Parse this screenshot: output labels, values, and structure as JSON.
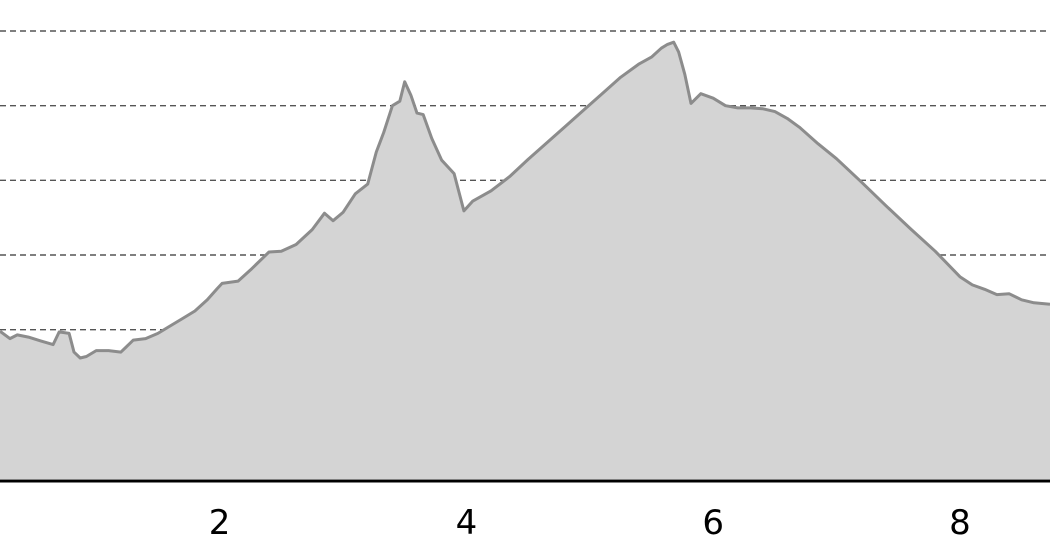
{
  "chart_data": {
    "type": "area",
    "title": "",
    "xlabel": "",
    "ylabel": "",
    "xlim": [
      0.22,
      8.73
    ],
    "ylim": [
      0,
      6
    ],
    "grid": {
      "horizontal": true,
      "vertical": true,
      "style": "dashed"
    },
    "x_ticks": [
      {
        "value": 2,
        "label": "2"
      },
      {
        "value": 4,
        "label": "4"
      },
      {
        "value": 6,
        "label": "6"
      },
      {
        "value": 8,
        "label": "8"
      }
    ],
    "y_gridlines": [
      1,
      2,
      3,
      4,
      5,
      6
    ],
    "colors": {
      "fill": "#d4d4d4",
      "line": "#8c8c8c",
      "grid": "#555555",
      "axis": "#000000"
    },
    "x": [
      0.22,
      0.3,
      0.36,
      0.45,
      0.55,
      0.65,
      0.7,
      0.78,
      0.82,
      0.87,
      0.92,
      1.0,
      1.1,
      1.2,
      1.3,
      1.4,
      1.5,
      1.6,
      1.7,
      1.8,
      1.9,
      1.98,
      2.02,
      2.15,
      2.25,
      2.4,
      2.5,
      2.62,
      2.75,
      2.85,
      2.92,
      3.0,
      3.1,
      3.2,
      3.27,
      3.33,
      3.4,
      3.46,
      3.5,
      3.55,
      3.6,
      3.65,
      3.72,
      3.8,
      3.9,
      3.98,
      4.05,
      4.2,
      4.35,
      4.5,
      4.65,
      4.8,
      4.95,
      5.1,
      5.25,
      5.4,
      5.5,
      5.58,
      5.63,
      5.68,
      5.72,
      5.77,
      5.82,
      5.9,
      6.0,
      6.1,
      6.2,
      6.3,
      6.4,
      6.5,
      6.6,
      6.7,
      6.85,
      7.0,
      7.2,
      7.4,
      7.6,
      7.8,
      8.0,
      8.1,
      8.2,
      8.3,
      8.4,
      8.5,
      8.6,
      8.73
    ],
    "y": [
      1.98,
      1.88,
      1.93,
      1.9,
      1.85,
      1.8,
      1.97,
      1.95,
      1.7,
      1.62,
      1.64,
      1.72,
      1.72,
      1.7,
      1.86,
      1.88,
      1.95,
      2.05,
      2.15,
      2.25,
      2.4,
      2.55,
      2.62,
      2.65,
      2.8,
      3.04,
      3.05,
      3.14,
      3.34,
      3.56,
      3.46,
      3.57,
      3.82,
      3.95,
      4.38,
      4.64,
      5.0,
      5.06,
      5.32,
      5.14,
      4.9,
      4.88,
      4.56,
      4.27,
      4.09,
      3.59,
      3.72,
      3.86,
      4.05,
      4.28,
      4.5,
      4.72,
      4.94,
      5.16,
      5.38,
      5.56,
      5.65,
      5.77,
      5.82,
      5.85,
      5.72,
      5.42,
      5.03,
      5.16,
      5.1,
      5.0,
      4.97,
      4.97,
      4.96,
      4.92,
      4.83,
      4.71,
      4.49,
      4.29,
      3.98,
      3.66,
      3.35,
      3.05,
      2.71,
      2.6,
      2.54,
      2.47,
      2.48,
      2.4,
      2.36,
      2.34
    ]
  }
}
